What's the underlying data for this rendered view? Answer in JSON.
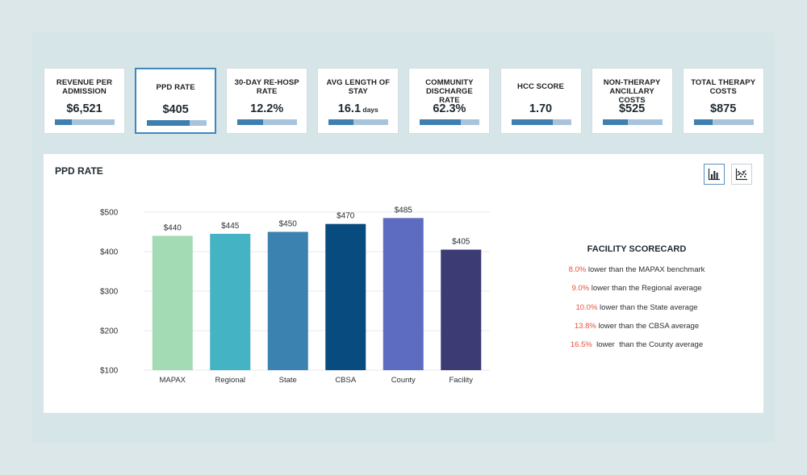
{
  "kpis": [
    {
      "label": "REVENUE PER ADMISSION",
      "value": "$6,521",
      "unit": "",
      "fill": 0.28,
      "active": false
    },
    {
      "label": "PPD RATE",
      "value": "$405",
      "unit": "",
      "fill": 0.72,
      "active": true
    },
    {
      "label": "30-DAY RE-HOSP RATE",
      "value": "12.2%",
      "unit": "",
      "fill": 0.43,
      "active": false
    },
    {
      "label": "AVG LENGTH OF STAY",
      "value": "16.1",
      "unit": "days",
      "fill": 0.42,
      "active": false
    },
    {
      "label": "COMMUNITY DISCHARGE RATE",
      "value": "62.3%",
      "unit": "",
      "fill": 0.68,
      "active": false
    },
    {
      "label": "HCC SCORE",
      "value": "1.70",
      "unit": "",
      "fill": 0.7,
      "active": false
    },
    {
      "label": "NON-THERAPY ANCILLARY COSTS",
      "value": "$525",
      "unit": "",
      "fill": 0.43,
      "active": false
    },
    {
      "label": "TOTAL THERAPY COSTS",
      "value": "$875",
      "unit": "",
      "fill": 0.32,
      "active": false
    }
  ],
  "panel": {
    "title": "PPD RATE",
    "view_buttons": [
      {
        "icon": "bar-chart-icon",
        "active": true
      },
      {
        "icon": "scatter-chart-icon",
        "active": false
      }
    ]
  },
  "chart_data": {
    "type": "bar",
    "title": "",
    "xlabel": "",
    "ylabel": "",
    "categories": [
      "MAPAX",
      "Regional",
      "State",
      "CBSA",
      "County",
      "Facility"
    ],
    "values": [
      440,
      445,
      450,
      470,
      485,
      405
    ],
    "value_labels": [
      "$440",
      "$445",
      "$450",
      "$470",
      "$485",
      "$405"
    ],
    "colors": [
      "#a3dbb4",
      "#44b4c5",
      "#3b82b0",
      "#084b7e",
      "#5d6cc0",
      "#3c3b73"
    ],
    "y_ticks": [
      {
        "value": 100,
        "label": "$100"
      },
      {
        "value": 200,
        "label": "$200"
      },
      {
        "value": 300,
        "label": "$300"
      },
      {
        "value": 400,
        "label": "$400"
      },
      {
        "value": 500,
        "label": "$500"
      }
    ],
    "ylim": [
      100,
      500
    ],
    "grid": true,
    "legend": "none"
  },
  "scorecard": {
    "title": "FACILITY SCORECARD",
    "items": [
      {
        "pct": "8.0%",
        "text": " lower than the MAPAX benchmark"
      },
      {
        "pct": "9.0%",
        "text": " lower than the Regional average"
      },
      {
        "pct": "10.0%",
        "text": " lower than the State average"
      },
      {
        "pct": "13.8%",
        "text": " lower than the CBSA average"
      },
      {
        "pct": "16.5%",
        "text": "  lower  than the County average"
      }
    ],
    "pct_color": "#e8503a"
  }
}
